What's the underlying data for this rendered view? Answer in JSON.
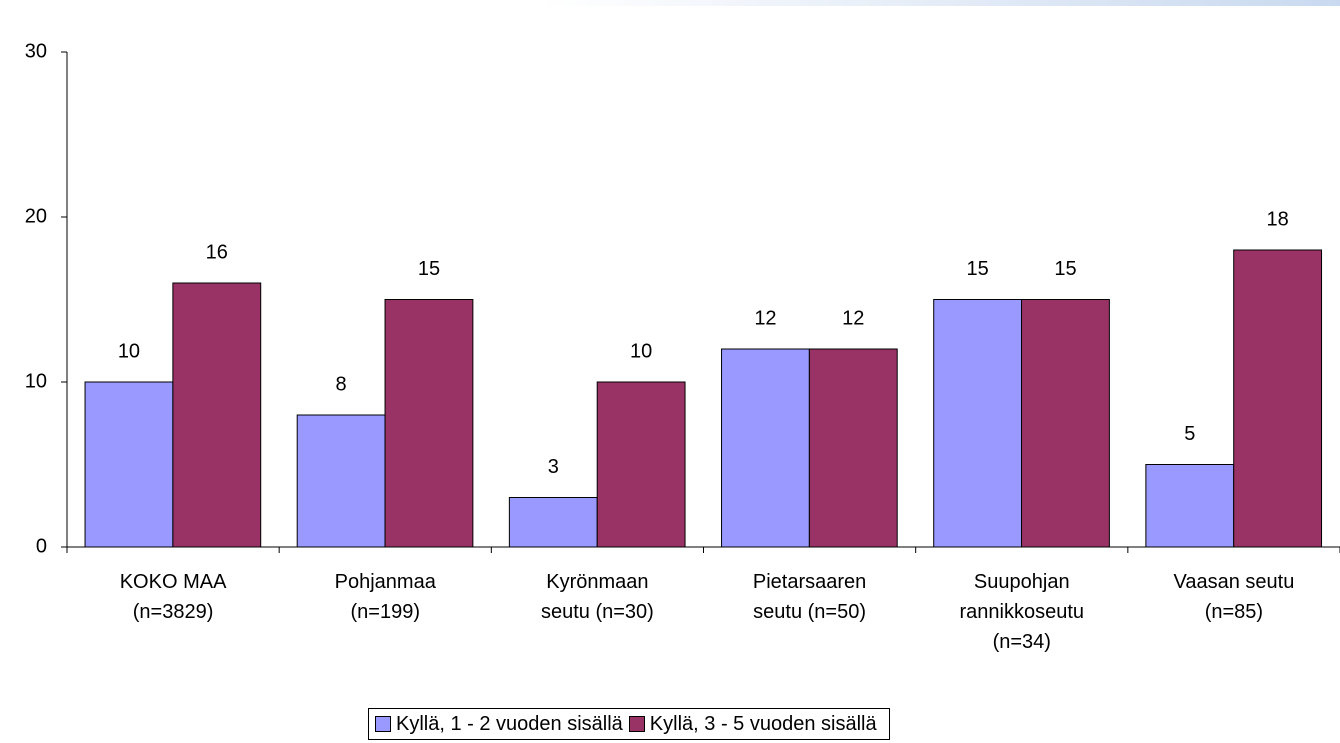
{
  "chart_data": {
    "type": "bar",
    "categories": [
      "KOKO MAA\n(n=3829)",
      "Pohjanmaa\n(n=199)",
      "Kyrönmaan\nseutu (n=30)",
      "Pietarsaaren\nseutu (n=50)",
      "Suupohjan\nrannikkoseutu\n(n=34)",
      "Vaasan seutu\n(n=85)"
    ],
    "series": [
      {
        "name": "Kyllä, 1 - 2 vuoden sisällä",
        "color": "#9999ff",
        "values": [
          10,
          8,
          3,
          12,
          15,
          5
        ]
      },
      {
        "name": "Kyllä, 3 - 5 vuoden sisällä",
        "color": "#993366",
        "values": [
          16,
          15,
          10,
          12,
          15,
          18
        ]
      }
    ],
    "ylim": [
      0,
      30
    ],
    "yticks": [
      0,
      10,
      20,
      30
    ],
    "legend": "bottom"
  }
}
